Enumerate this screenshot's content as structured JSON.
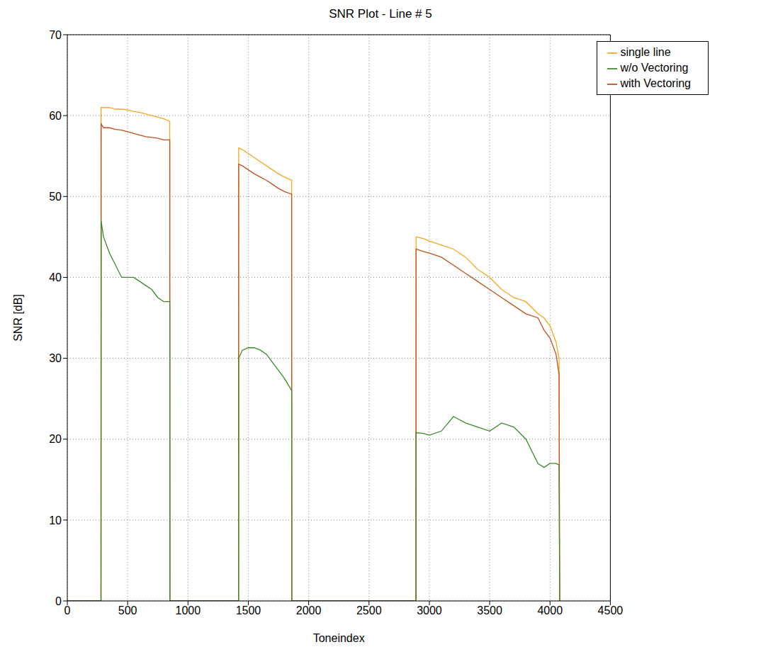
{
  "chart_data": {
    "type": "line",
    "title": "SNR Plot - Line # 5",
    "x_label": "Toneindex",
    "y_label": "SNR [dB]",
    "x": [
      0,
      279,
      280,
      300,
      350,
      400,
      450,
      500,
      550,
      600,
      650,
      700,
      750,
      800,
      849,
      850,
      1419,
      1420,
      1450,
      1500,
      1550,
      1600,
      1650,
      1700,
      1750,
      1800,
      1859,
      1860,
      2889,
      2890,
      2950,
      3000,
      3100,
      3200,
      3300,
      3400,
      3500,
      3600,
      3700,
      3800,
      3900,
      3950,
      4000,
      4050,
      4075,
      4080
    ],
    "series": [
      {
        "name": "single line",
        "color": "#f5a623",
        "values": [
          0,
          0,
          61,
          61,
          61,
          60.8,
          60.8,
          60.7,
          60.5,
          60.4,
          60.2,
          60,
          59.8,
          59.6,
          59.3,
          0,
          0,
          56,
          55.8,
          55.3,
          54.8,
          54.3,
          53.8,
          53.3,
          52.8,
          52.4,
          52,
          0,
          0,
          45,
          44.8,
          44.5,
          44,
          43.5,
          42.5,
          41,
          40,
          38.5,
          37.5,
          37,
          35.5,
          35,
          34,
          32,
          30,
          0
        ]
      },
      {
        "name": "with Vectoring",
        "color": "#c0501a",
        "values": [
          0,
          0,
          59,
          58.5,
          58.5,
          58.3,
          58.2,
          58,
          57.8,
          57.6,
          57.4,
          57.3,
          57.2,
          57,
          57,
          0,
          0,
          54,
          53.8,
          53.3,
          52.8,
          52.4,
          52,
          51.5,
          51,
          50.6,
          50.3,
          0,
          0,
          43.5,
          43.2,
          43,
          42.5,
          41.5,
          40.5,
          39.5,
          38.5,
          37.5,
          36.5,
          35.5,
          35,
          33.5,
          32.5,
          30.5,
          28,
          0
        ]
      },
      {
        "name": "w/o Vectoring",
        "color": "#3a8a2a",
        "values": [
          0,
          0,
          47,
          45,
          43,
          41.5,
          40,
          40,
          40,
          39.5,
          39,
          38.5,
          37.5,
          37,
          37,
          0,
          0,
          30,
          31,
          31.3,
          31.3,
          31,
          30.5,
          29.5,
          28.5,
          27.5,
          26,
          0,
          0,
          20.8,
          20.7,
          20.5,
          21,
          22.8,
          22,
          21.5,
          21,
          22,
          21.5,
          20,
          17,
          16.5,
          17,
          17,
          16.8,
          0
        ]
      }
    ],
    "xlim": [
      0,
      4500
    ],
    "xticks": [
      0,
      500,
      1000,
      1500,
      2000,
      2500,
      3000,
      3500,
      4000,
      4500
    ],
    "ylim": [
      0,
      70
    ],
    "yticks": [
      0,
      10,
      20,
      30,
      40,
      50,
      60,
      70
    ],
    "grid": true,
    "legend": "upper right"
  }
}
